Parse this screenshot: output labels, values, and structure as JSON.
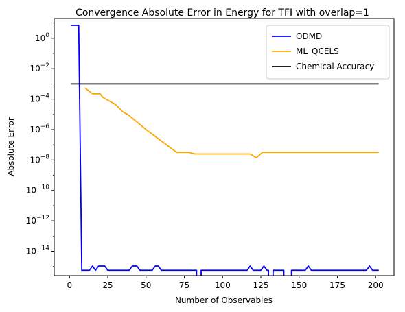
{
  "chart_data": {
    "type": "line",
    "title": "Convergence Absolute Error in Energy for TFI with overlap=1",
    "xlabel": "Number of Observables",
    "ylabel": "Absolute Error",
    "xlim": [
      -10,
      212
    ],
    "ylim_log10": [
      -15.6,
      1.3
    ],
    "yscale": "log",
    "grid": false,
    "legend_position": "top-right",
    "xticks": [
      0,
      25,
      50,
      75,
      100,
      125,
      150,
      175,
      200
    ],
    "yticks": [
      {
        "exp": 0,
        "label": "10^0"
      },
      {
        "exp": -2,
        "label": "10^-2"
      },
      {
        "exp": -4,
        "label": "10^-4"
      },
      {
        "exp": -6,
        "label": "10^-6"
      },
      {
        "exp": -8,
        "label": "10^-8"
      },
      {
        "exp": -10,
        "label": "10^-10"
      },
      {
        "exp": -12,
        "label": "10^-12"
      },
      {
        "exp": -14,
        "label": "10^-14"
      }
    ],
    "series": [
      {
        "name": "ODMD",
        "color": "#0000ff",
        "points": [
          [
            1,
            0.85
          ],
          [
            6,
            0.85
          ],
          [
            8,
            -15.25
          ],
          [
            13,
            -15.25
          ],
          [
            15,
            -14.97
          ],
          [
            17,
            -15.25
          ],
          [
            19,
            -14.97
          ],
          [
            23,
            -14.97
          ],
          [
            25,
            -15.25
          ],
          [
            39,
            -15.25
          ],
          [
            41,
            -14.97
          ],
          [
            44,
            -14.97
          ],
          [
            46,
            -15.25
          ],
          [
            54,
            -15.25
          ],
          [
            56,
            -14.97
          ],
          [
            58,
            -14.97
          ],
          [
            60,
            -15.25
          ],
          [
            83,
            -15.25
          ],
          [
            83,
            -15.8
          ],
          [
            86,
            -15.8
          ],
          [
            86,
            -15.25
          ],
          [
            116,
            -15.25
          ],
          [
            118,
            -14.97
          ],
          [
            120,
            -15.25
          ],
          [
            125,
            -15.25
          ],
          [
            127,
            -14.97
          ],
          [
            129,
            -15.25
          ],
          [
            130,
            -15.25
          ],
          [
            130,
            -15.8
          ],
          [
            133,
            -15.8
          ],
          [
            133,
            -15.25
          ],
          [
            140,
            -15.25
          ],
          [
            140,
            -15.8
          ],
          [
            145,
            -15.8
          ],
          [
            145,
            -15.25
          ],
          [
            154,
            -15.25
          ],
          [
            156,
            -14.97
          ],
          [
            158,
            -15.25
          ],
          [
            194,
            -15.25
          ],
          [
            196,
            -14.97
          ],
          [
            198,
            -15.25
          ],
          [
            202,
            -15.25
          ]
        ]
      },
      {
        "name": "ML_QCELS",
        "color": "#ffa500",
        "points": [
          [
            10,
            -3.25
          ],
          [
            15,
            -3.65
          ],
          [
            20,
            -3.65
          ],
          [
            22,
            -3.9
          ],
          [
            30,
            -4.35
          ],
          [
            35,
            -4.85
          ],
          [
            38,
            -5.0
          ],
          [
            50,
            -6.0
          ],
          [
            60,
            -6.75
          ],
          [
            70,
            -7.5
          ],
          [
            78,
            -7.5
          ],
          [
            82,
            -7.6
          ],
          [
            118,
            -7.6
          ],
          [
            122,
            -7.85
          ],
          [
            126,
            -7.5
          ],
          [
            202,
            -7.5
          ]
        ]
      },
      {
        "name": "Chemical Accuracy",
        "color": "#000000",
        "points": [
          [
            1,
            -3
          ],
          [
            202,
            -3
          ]
        ]
      }
    ]
  }
}
